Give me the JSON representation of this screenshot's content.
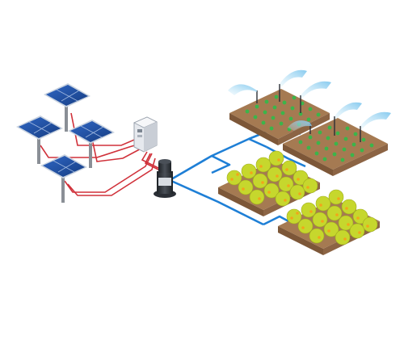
{
  "diagram": {
    "subject": "solar-powered-irrigation-system",
    "colors": {
      "panel_cell": "#1f4fa0",
      "panel_frame": "#c9d3e0",
      "pole": "#8a8f96",
      "wire": "#d0313a",
      "pipe": "#1e7fd6",
      "controller_body": "#e6e9ee",
      "pump_body": "#2b2f36",
      "soil": "#a57a52",
      "soil_dark": "#7d5738",
      "crop_green": "#3bb54a",
      "tree_canopy": "#c6d72d",
      "tree_fruit": "#f2a51a",
      "sprinkler_spray": "#8fd0f0"
    },
    "components": [
      {
        "name": "solar-panel",
        "count": 4
      },
      {
        "name": "controller-box",
        "count": 1
      },
      {
        "name": "water-pump",
        "count": 1
      },
      {
        "name": "crop-field-with-sprinklers",
        "count": 2
      },
      {
        "name": "orchard-field",
        "count": 2
      }
    ]
  }
}
